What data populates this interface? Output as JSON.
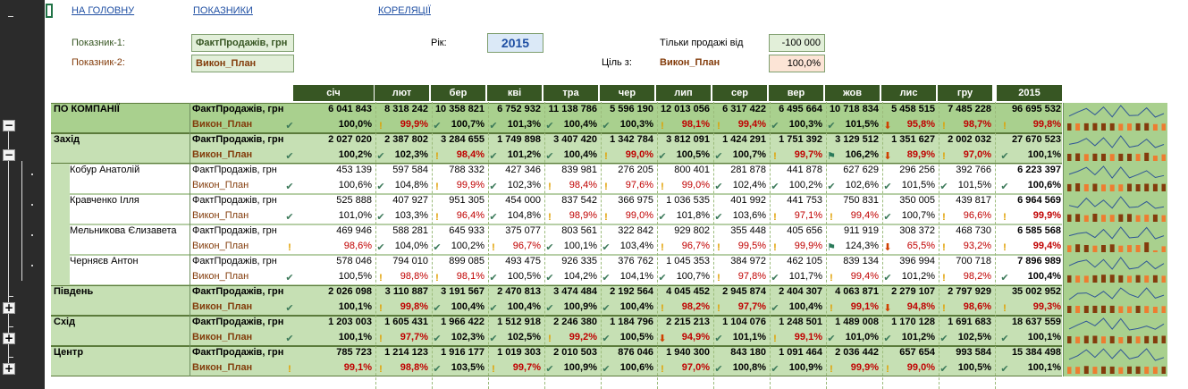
{
  "nav": {
    "home": "НА ГОЛОВНУ",
    "indicators": "ПОКАЗНИКИ",
    "correlation": "КОРЕЛЯЦІЇ"
  },
  "filters": {
    "ind1_label": "Показник-1:",
    "ind1_value": "ФактПродажів, грн",
    "ind2_label": "Показник-2:",
    "ind2_value": "Викон_План",
    "year_label": "Рік:",
    "year_value": "2015",
    "sales_from_label": "Тільки продажі від",
    "sales_from_value": "-100 000",
    "goal_label": "Ціль з:",
    "goal_indicator": "Викон_План",
    "goal_value": "100,0%"
  },
  "months": [
    "січ",
    "лют",
    "бер",
    "кві",
    "тра",
    "чер",
    "лип",
    "сер",
    "вер",
    "жов",
    "лис",
    "гру"
  ],
  "year_col": "2015",
  "gutter": {
    "collapse": "−",
    "expand": "+"
  },
  "rows": [
    {
      "name": "ПО КОМПАНІЇ",
      "level": 0,
      "ind1": "ФактПродажів, грн",
      "ind2": "Викон_План",
      "values": [
        "6 041 843",
        "8 318 242",
        "10 358 821",
        "6 752 932",
        "11 138 786",
        "5 596 190",
        "12 013 056",
        "6 317 422",
        "6 495 664",
        "10 718 834",
        "5 458 515",
        "7 485 228"
      ],
      "total": "96 695 532",
      "pcts": [
        "100,0%",
        "99,9%",
        "100,7%",
        "101,3%",
        "100,4%",
        "100,3%",
        "98,1%",
        "99,4%",
        "100,3%",
        "101,5%",
        "95,8%",
        "98,7%"
      ],
      "total_pct": "99,8%",
      "icons": [
        "ok",
        "warn",
        "ok",
        "ok",
        "ok",
        "ok",
        "warn",
        "warn",
        "ok",
        "ok",
        "down",
        "warn"
      ],
      "total_icon": "warn"
    },
    {
      "name": "Захід",
      "level": 1,
      "ind1": "ФактПродажів, грн",
      "ind2": "Викон_План",
      "values": [
        "2 027 020",
        "2 387 802",
        "3 284 655",
        "1 749 898",
        "3 407 420",
        "1 342 784",
        "3 812 091",
        "1 424 291",
        "1 751 392",
        "3 129 512",
        "1 351 627",
        "2 002 032"
      ],
      "total": "27 670 523",
      "pcts": [
        "100,2%",
        "102,3%",
        "98,4%",
        "101,2%",
        "100,4%",
        "99,0%",
        "100,5%",
        "100,7%",
        "99,7%",
        "106,2%",
        "89,9%",
        "97,0%"
      ],
      "total_pct": "100,1%",
      "icons": [
        "ok",
        "ok",
        "warn",
        "ok",
        "ok",
        "warn",
        "ok",
        "ok",
        "warn",
        "flag",
        "down",
        "warn"
      ],
      "total_icon": "ok"
    },
    {
      "name": "Кобур Анатолій",
      "level": 2,
      "ind1": "ФактПродажів, грн",
      "ind2": "Викон_План",
      "values": [
        "453 139",
        "597 584",
        "788 332",
        "427 346",
        "839 981",
        "276 205",
        "800 401",
        "281 878",
        "441 878",
        "627 629",
        "296 256",
        "392 766"
      ],
      "total": "6 223 397",
      "pcts": [
        "100,6%",
        "104,8%",
        "99,9%",
        "102,3%",
        "98,4%",
        "97,6%",
        "99,0%",
        "102,4%",
        "100,2%",
        "102,6%",
        "101,5%",
        "101,5%"
      ],
      "total_pct": "100,6%",
      "icons": [
        "ok",
        "ok",
        "warn",
        "ok",
        "warn",
        "warn",
        "warn",
        "ok",
        "ok",
        "ok",
        "ok",
        "ok"
      ],
      "total_icon": "ok"
    },
    {
      "name": "Кравченко Ілля",
      "level": 2,
      "ind1": "ФактПродажів, грн",
      "ind2": "Викон_План",
      "values": [
        "525 888",
        "407 927",
        "951 305",
        "454 000",
        "837 542",
        "366 975",
        "1 036 535",
        "401 992",
        "441 753",
        "750 831",
        "350 005",
        "439 817"
      ],
      "total": "6 964 569",
      "pcts": [
        "101,0%",
        "103,3%",
        "96,4%",
        "104,8%",
        "98,9%",
        "99,0%",
        "101,8%",
        "103,6%",
        "97,1%",
        "99,4%",
        "100,7%",
        "96,6%"
      ],
      "total_pct": "99,9%",
      "icons": [
        "ok",
        "ok",
        "warn",
        "ok",
        "warn",
        "warn",
        "ok",
        "ok",
        "warn",
        "warn",
        "ok",
        "warn"
      ],
      "total_icon": "warn"
    },
    {
      "name": "Мельникова Єлизавета",
      "level": 2,
      "ind1": "ФактПродажів, грн",
      "ind2": "Викон_План",
      "values": [
        "469 946",
        "588 281",
        "645 933",
        "375 077",
        "803 561",
        "322 842",
        "929 802",
        "355 448",
        "405 656",
        "911 919",
        "308 372",
        "468 730"
      ],
      "total": "6 585 568",
      "pcts": [
        "98,6%",
        "104,0%",
        "100,2%",
        "96,7%",
        "100,1%",
        "103,4%",
        "96,7%",
        "99,5%",
        "99,9%",
        "124,3%",
        "65,5%",
        "93,2%"
      ],
      "total_pct": "99,4%",
      "icons": [
        "warn",
        "ok",
        "ok",
        "warn",
        "ok",
        "ok",
        "warn",
        "warn",
        "warn",
        "flag",
        "down",
        "warn"
      ],
      "total_icon": "warn"
    },
    {
      "name": "Черняєв Антон",
      "level": 2,
      "ind1": "ФактПродажів, грн",
      "ind2": "Викон_План",
      "values": [
        "578 046",
        "794 010",
        "899 085",
        "493 475",
        "926 335",
        "376 762",
        "1 045 353",
        "384 972",
        "462 105",
        "839 134",
        "396 994",
        "700 718"
      ],
      "total": "7 896 989",
      "pcts": [
        "100,5%",
        "98,8%",
        "98,1%",
        "100,5%",
        "104,2%",
        "104,1%",
        "100,7%",
        "97,8%",
        "101,7%",
        "99,4%",
        "101,2%",
        "98,2%"
      ],
      "total_pct": "100,4%",
      "icons": [
        "ok",
        "warn",
        "warn",
        "ok",
        "ok",
        "ok",
        "ok",
        "warn",
        "ok",
        "warn",
        "ok",
        "warn"
      ],
      "total_icon": "ok"
    },
    {
      "name": "Південь",
      "level": 1,
      "ind1": "ФактПродажів, грн",
      "ind2": "Викон_План",
      "values": [
        "2 026 098",
        "3 110 887",
        "3 191 567",
        "2 470 813",
        "3 474 484",
        "2 192 564",
        "4 045 452",
        "2 945 874",
        "2 404 307",
        "4 063 871",
        "2 279 107",
        "2 797 929"
      ],
      "total": "35 002 952",
      "pcts": [
        "100,1%",
        "99,8%",
        "100,4%",
        "100,4%",
        "100,9%",
        "100,4%",
        "98,2%",
        "97,7%",
        "100,4%",
        "99,1%",
        "94,8%",
        "98,6%"
      ],
      "total_pct": "99,3%",
      "icons": [
        "ok",
        "warn",
        "ok",
        "ok",
        "ok",
        "ok",
        "warn",
        "warn",
        "ok",
        "warn",
        "down",
        "warn"
      ],
      "total_icon": "warn"
    },
    {
      "name": "Схід",
      "level": 1,
      "ind1": "ФактПродажів, грн",
      "ind2": "Викон_План",
      "values": [
        "1 203 003",
        "1 605 431",
        "1 966 422",
        "1 512 918",
        "2 246 380",
        "1 184 796",
        "2 215 213",
        "1 104 076",
        "1 248 501",
        "1 489 008",
        "1 170 128",
        "1 691 683"
      ],
      "total": "18 637 559",
      "pcts": [
        "100,1%",
        "97,7%",
        "102,3%",
        "102,5%",
        "99,2%",
        "100,5%",
        "94,9%",
        "101,1%",
        "99,1%",
        "101,0%",
        "101,2%",
        "102,5%"
      ],
      "total_pct": "100,1%",
      "icons": [
        "ok",
        "warn",
        "ok",
        "ok",
        "warn",
        "ok",
        "down",
        "ok",
        "warn",
        "ok",
        "ok",
        "ok"
      ],
      "total_icon": "ok"
    },
    {
      "name": "Центр",
      "level": 1,
      "ind1": "ФактПродажів, грн",
      "ind2": "Викон_План",
      "values": [
        "785 723",
        "1 214 123",
        "1 916 177",
        "1 019 303",
        "2 010 503",
        "876 046",
        "1 940 300",
        "843 180",
        "1 091 464",
        "2 036 442",
        "657 654",
        "993 584"
      ],
      "total": "15 384 498",
      "pcts": [
        "99,1%",
        "98,8%",
        "103,5%",
        "99,7%",
        "100,9%",
        "100,6%",
        "97,0%",
        "100,8%",
        "100,9%",
        "99,9%",
        "99,0%",
        "100,5%"
      ],
      "total_pct": "100,1%",
      "icons": [
        "warn",
        "warn",
        "ok",
        "warn",
        "ok",
        "ok",
        "warn",
        "ok",
        "ok",
        "warn",
        "warn",
        "ok"
      ],
      "total_icon": "ok"
    }
  ],
  "colors": {
    "header_bg": "#375623",
    "group_bg": "#c6e0b4",
    "company_bg": "#a9d08e",
    "plan_text": "#833c0b",
    "bad_text": "#c00000",
    "ok_icon": "#3c7a5a",
    "warn_icon": "#e0a000",
    "spark_line": "#2f5597",
    "spark_bar": "#843c0c",
    "spark_bar_hi": "#ed7d31"
  },
  "icon_names": {
    "ok": "check-icon",
    "warn": "exclamation-icon",
    "down": "down-arrow-icon",
    "flag": "flag-icon"
  }
}
